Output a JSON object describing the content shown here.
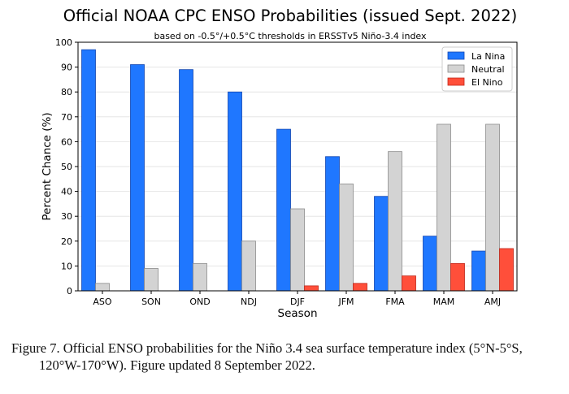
{
  "chart_data": {
    "type": "bar",
    "title": "Official NOAA CPC ENSO Probabilities (issued Sept. 2022)",
    "subtitle": "based on -0.5°/+0.5°C thresholds in ERSSTv5 Niño-3.4 index",
    "xlabel": "Season",
    "ylabel": "Percent Chance (%)",
    "ylim": [
      0,
      100
    ],
    "yticks": [
      0,
      10,
      20,
      30,
      40,
      50,
      60,
      70,
      80,
      90,
      100
    ],
    "grid": true,
    "legend_position": "top-right",
    "categories": [
      "ASO",
      "SON",
      "OND",
      "NDJ",
      "DJF",
      "JFM",
      "FMA",
      "MAM",
      "AMJ"
    ],
    "series": [
      {
        "name": "La Nina",
        "color": "#1f77ff",
        "values": [
          97,
          91,
          89,
          80,
          65,
          54,
          38,
          22,
          16
        ]
      },
      {
        "name": "Neutral",
        "color": "#d3d3d3",
        "values": [
          3,
          9,
          11,
          20,
          33,
          43,
          56,
          67,
          67
        ]
      },
      {
        "name": "El Nino",
        "color": "#ff4f3a",
        "values": [
          0,
          0,
          0,
          0,
          2,
          3,
          6,
          11,
          17
        ]
      }
    ]
  },
  "caption": {
    "line1": "Figure 7. Official ENSO probabilities for the Niño 3.4 sea surface temperature index (5°N-5°S,",
    "line2": "120°W-170°W). Figure updated 8 September 2022."
  }
}
